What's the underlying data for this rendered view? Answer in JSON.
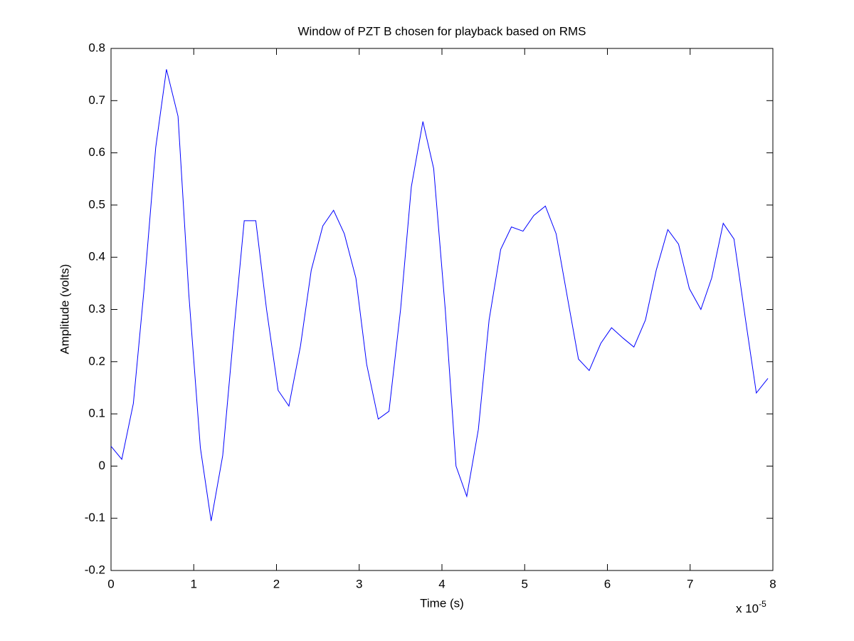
{
  "chart_data": {
    "type": "line",
    "title": "Window of PZT B chosen for playback based on RMS",
    "x_label": "Time (s)",
    "y_label": "Amplitude (volts)",
    "x_multiplier": {
      "base": "x 10",
      "exponent": "-5"
    },
    "x": [
      0,
      0.13,
      0.27,
      0.4,
      0.54,
      0.67,
      0.81,
      0.94,
      1.08,
      1.21,
      1.35,
      1.48,
      1.61,
      1.75,
      1.88,
      2.02,
      2.15,
      2.29,
      2.42,
      2.56,
      2.69,
      2.82,
      2.96,
      3.09,
      3.23,
      3.36,
      3.5,
      3.63,
      3.77,
      3.9,
      4.04,
      4.17,
      4.3,
      4.44,
      4.57,
      4.71,
      4.84,
      4.98,
      5.11,
      5.25,
      5.38,
      5.52,
      5.65,
      5.78,
      5.92,
      6.05,
      6.19,
      6.32,
      6.46,
      6.59,
      6.73,
      6.86,
      6.99,
      7.13,
      7.26,
      7.4,
      7.53,
      7.67,
      7.8,
      7.94
    ],
    "series": [
      {
        "color": "#0000ff",
        "values": [
          0.038,
          0.013,
          0.12,
          0.34,
          0.61,
          0.76,
          0.67,
          0.33,
          0.035,
          -0.105,
          0.02,
          0.25,
          0.47,
          0.47,
          0.3,
          0.145,
          0.115,
          0.23,
          0.375,
          0.46,
          0.49,
          0.445,
          0.36,
          0.195,
          0.09,
          0.105,
          0.3,
          0.535,
          0.66,
          0.57,
          0.3,
          0.0,
          -0.058,
          0.07,
          0.28,
          0.415,
          0.458,
          0.45,
          0.48,
          0.498,
          0.445,
          0.32,
          0.205,
          0.183,
          0.235,
          0.265,
          0.245,
          0.228,
          0.28,
          0.375,
          0.453,
          0.425,
          0.34,
          0.3,
          0.36,
          0.465,
          0.435,
          0.28,
          0.14,
          0.168
        ]
      }
    ],
    "xlim": [
      0,
      8
    ],
    "xticks": [
      0,
      1,
      2,
      3,
      4,
      5,
      6,
      7,
      8
    ],
    "ylim": [
      -0.2,
      0.8
    ],
    "yticks": [
      -0.2,
      -0.1,
      0,
      0.1,
      0.2,
      0.3,
      0.4,
      0.5,
      0.6,
      0.7,
      0.8
    ],
    "grid": false
  }
}
